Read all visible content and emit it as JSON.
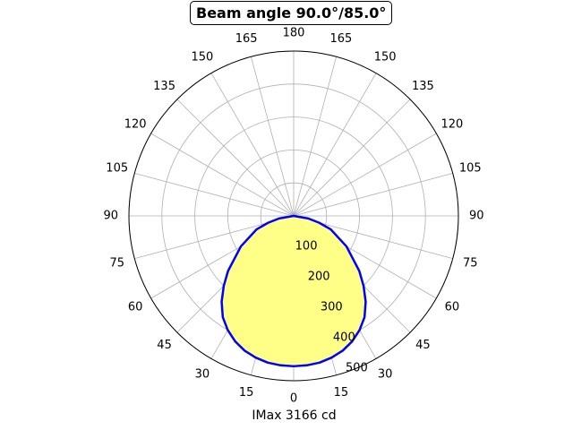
{
  "chart_data": {
    "type": "polar",
    "title": "Beam angle 90.0°/85.0°",
    "xlabel": "IMax 3166 cd",
    "angle_ticks": [
      {
        "angle": 0,
        "label": "0"
      },
      {
        "angle": 15,
        "label": "15"
      },
      {
        "angle": 30,
        "label": "30"
      },
      {
        "angle": 45,
        "label": "45"
      },
      {
        "angle": 60,
        "label": "60"
      },
      {
        "angle": 75,
        "label": "75"
      },
      {
        "angle": 90,
        "label": "90"
      },
      {
        "angle": 105,
        "label": "105"
      },
      {
        "angle": 120,
        "label": "120"
      },
      {
        "angle": 135,
        "label": "135"
      },
      {
        "angle": 150,
        "label": "150"
      },
      {
        "angle": 165,
        "label": "165"
      },
      {
        "angle": 180,
        "label": "180"
      },
      {
        "angle": -165,
        "label": "165"
      },
      {
        "angle": -150,
        "label": "150"
      },
      {
        "angle": -135,
        "label": "135"
      },
      {
        "angle": -120,
        "label": "120"
      },
      {
        "angle": -105,
        "label": "105"
      },
      {
        "angle": -90,
        "label": "90"
      },
      {
        "angle": -75,
        "label": "75"
      },
      {
        "angle": -60,
        "label": "60"
      },
      {
        "angle": -45,
        "label": "45"
      },
      {
        "angle": -30,
        "label": "30"
      },
      {
        "angle": -15,
        "label": "15"
      }
    ],
    "radial_ticks": [
      100,
      200,
      300,
      400,
      500
    ],
    "radial_tick_labels": [
      "100",
      "200",
      "300",
      "400",
      "500"
    ],
    "rlim": [
      0,
      500
    ],
    "grid": true,
    "fill_color": "#ffff88",
    "line_color": "#0000ff",
    "series": [
      {
        "angles": [
          -90,
          -80,
          -75,
          -70,
          -60,
          -50,
          -45,
          -40,
          -35,
          -30,
          -25,
          -20,
          -15,
          -10,
          -5,
          0,
          5,
          10,
          15,
          20,
          25,
          30,
          35,
          40,
          45,
          50,
          60,
          70,
          75,
          80,
          90
        ],
        "values": [
          0,
          45,
          80,
          120,
          185,
          260,
          300,
          340,
          375,
          400,
          420,
          435,
          445,
          452,
          455,
          456,
          455,
          452,
          445,
          435,
          420,
          400,
          375,
          340,
          300,
          260,
          185,
          120,
          80,
          45,
          0
        ]
      }
    ]
  }
}
